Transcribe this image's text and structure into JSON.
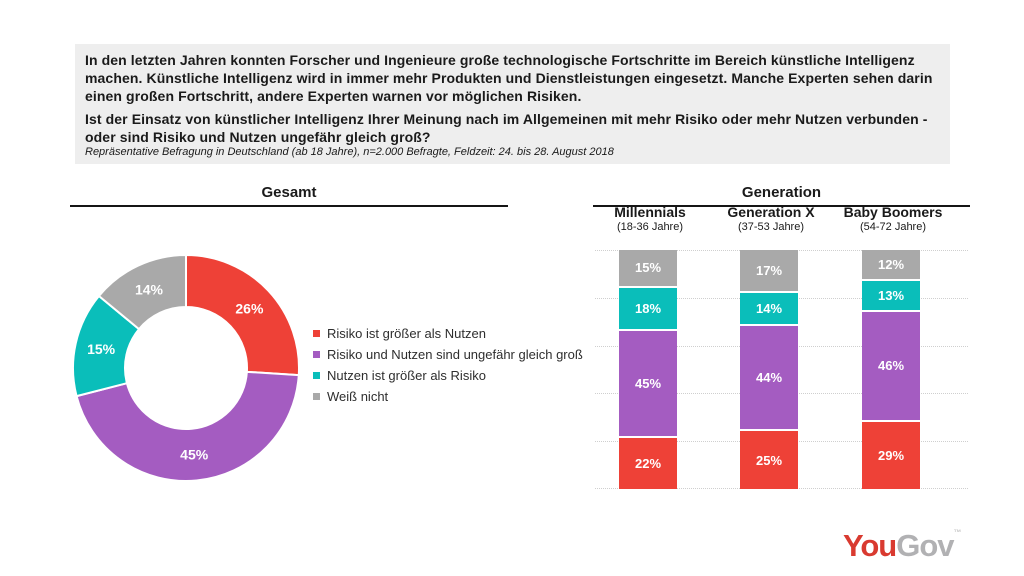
{
  "header": {
    "paragraph1": "In den letzten Jahren konnten Forscher und Ingenieure große technologische Fortschritte im Bereich künstliche Intelligenz machen. Künstliche Intelligenz wird in immer mehr Produkten und Dienstleistungen eingesetzt. Manche Experten sehen darin einen großen Fortschritt, andere Experten warnen vor möglichen Risiken.",
    "paragraph2": "Ist der Einsatz von künstlicher Intelligenz Ihrer Meinung nach im Allgemeinen mit mehr Risiko oder mehr Nutzen verbunden - oder sind Risiko und Nutzen ungefähr gleich groß?",
    "footnote": "Repräsentative Befragung in Deutschland (ab 18 Jahre), n=2.000 Befragte, Feldzeit: 24. bis 28. August 2018"
  },
  "colors": {
    "risk_red": "#ee4137",
    "equal_purple": "#a45cc1",
    "benefit_teal": "#0abeba",
    "dontknow_gray": "#a9a9a9",
    "header_box_bg": "#eeeeee",
    "gridline": "#cfcfcf",
    "logo_red": "#d93a30",
    "logo_gray": "#b1b1b3"
  },
  "logo": {
    "you": "You",
    "gov": "Gov",
    "mark": "™"
  },
  "chart_data": [
    {
      "type": "pie",
      "variant": "donut",
      "title": "Gesamt",
      "labels": [
        "Risiko ist größer als Nutzen",
        "Risiko und Nutzen sind ungefähr gleich groß",
        "Nutzen ist größer als Risiko",
        "Weiß nicht"
      ],
      "values": [
        26,
        45,
        15,
        14
      ],
      "unit": "%",
      "colors": [
        "#ee4137",
        "#a45cc1",
        "#0abeba",
        "#a9a9a9"
      ],
      "start_angle_deg": 0,
      "direction": "clockwise",
      "inner_radius_ratio": 0.54,
      "legend_position": "right",
      "data_labels": "inside-white-bold"
    },
    {
      "type": "bar",
      "stacked": true,
      "orientation": "vertical",
      "title": "Generation",
      "categories": [
        "Millennials",
        "Generation X",
        "Baby Boomers"
      ],
      "category_subtitles": [
        "(18-36 Jahre)",
        "(37-53 Jahre)",
        "(54-72 Jahre)"
      ],
      "series": [
        {
          "name": "Risiko ist größer als Nutzen",
          "color": "#ee4137",
          "values": [
            22,
            25,
            29
          ]
        },
        {
          "name": "Risiko und Nutzen sind ungefähr gleich groß",
          "color": "#a45cc1",
          "values": [
            45,
            44,
            46
          ]
        },
        {
          "name": "Nutzen ist größer als Risiko",
          "color": "#0abeba",
          "values": [
            18,
            14,
            13
          ]
        },
        {
          "name": "Weiß nicht",
          "color": "#a9a9a9",
          "values": [
            15,
            17,
            12
          ]
        }
      ],
      "stack_order_top_to_bottom": [
        "Weiß nicht",
        "Nutzen ist größer als Risiko",
        "Risiko und Nutzen sind ungefähr gleich groß",
        "Risiko ist größer als Nutzen"
      ],
      "unit": "%",
      "ylim": [
        0,
        100
      ],
      "grid": true,
      "grid_step": 20,
      "axis_tick_labels_shown": false,
      "data_labels": "inside-white-bold"
    }
  ]
}
